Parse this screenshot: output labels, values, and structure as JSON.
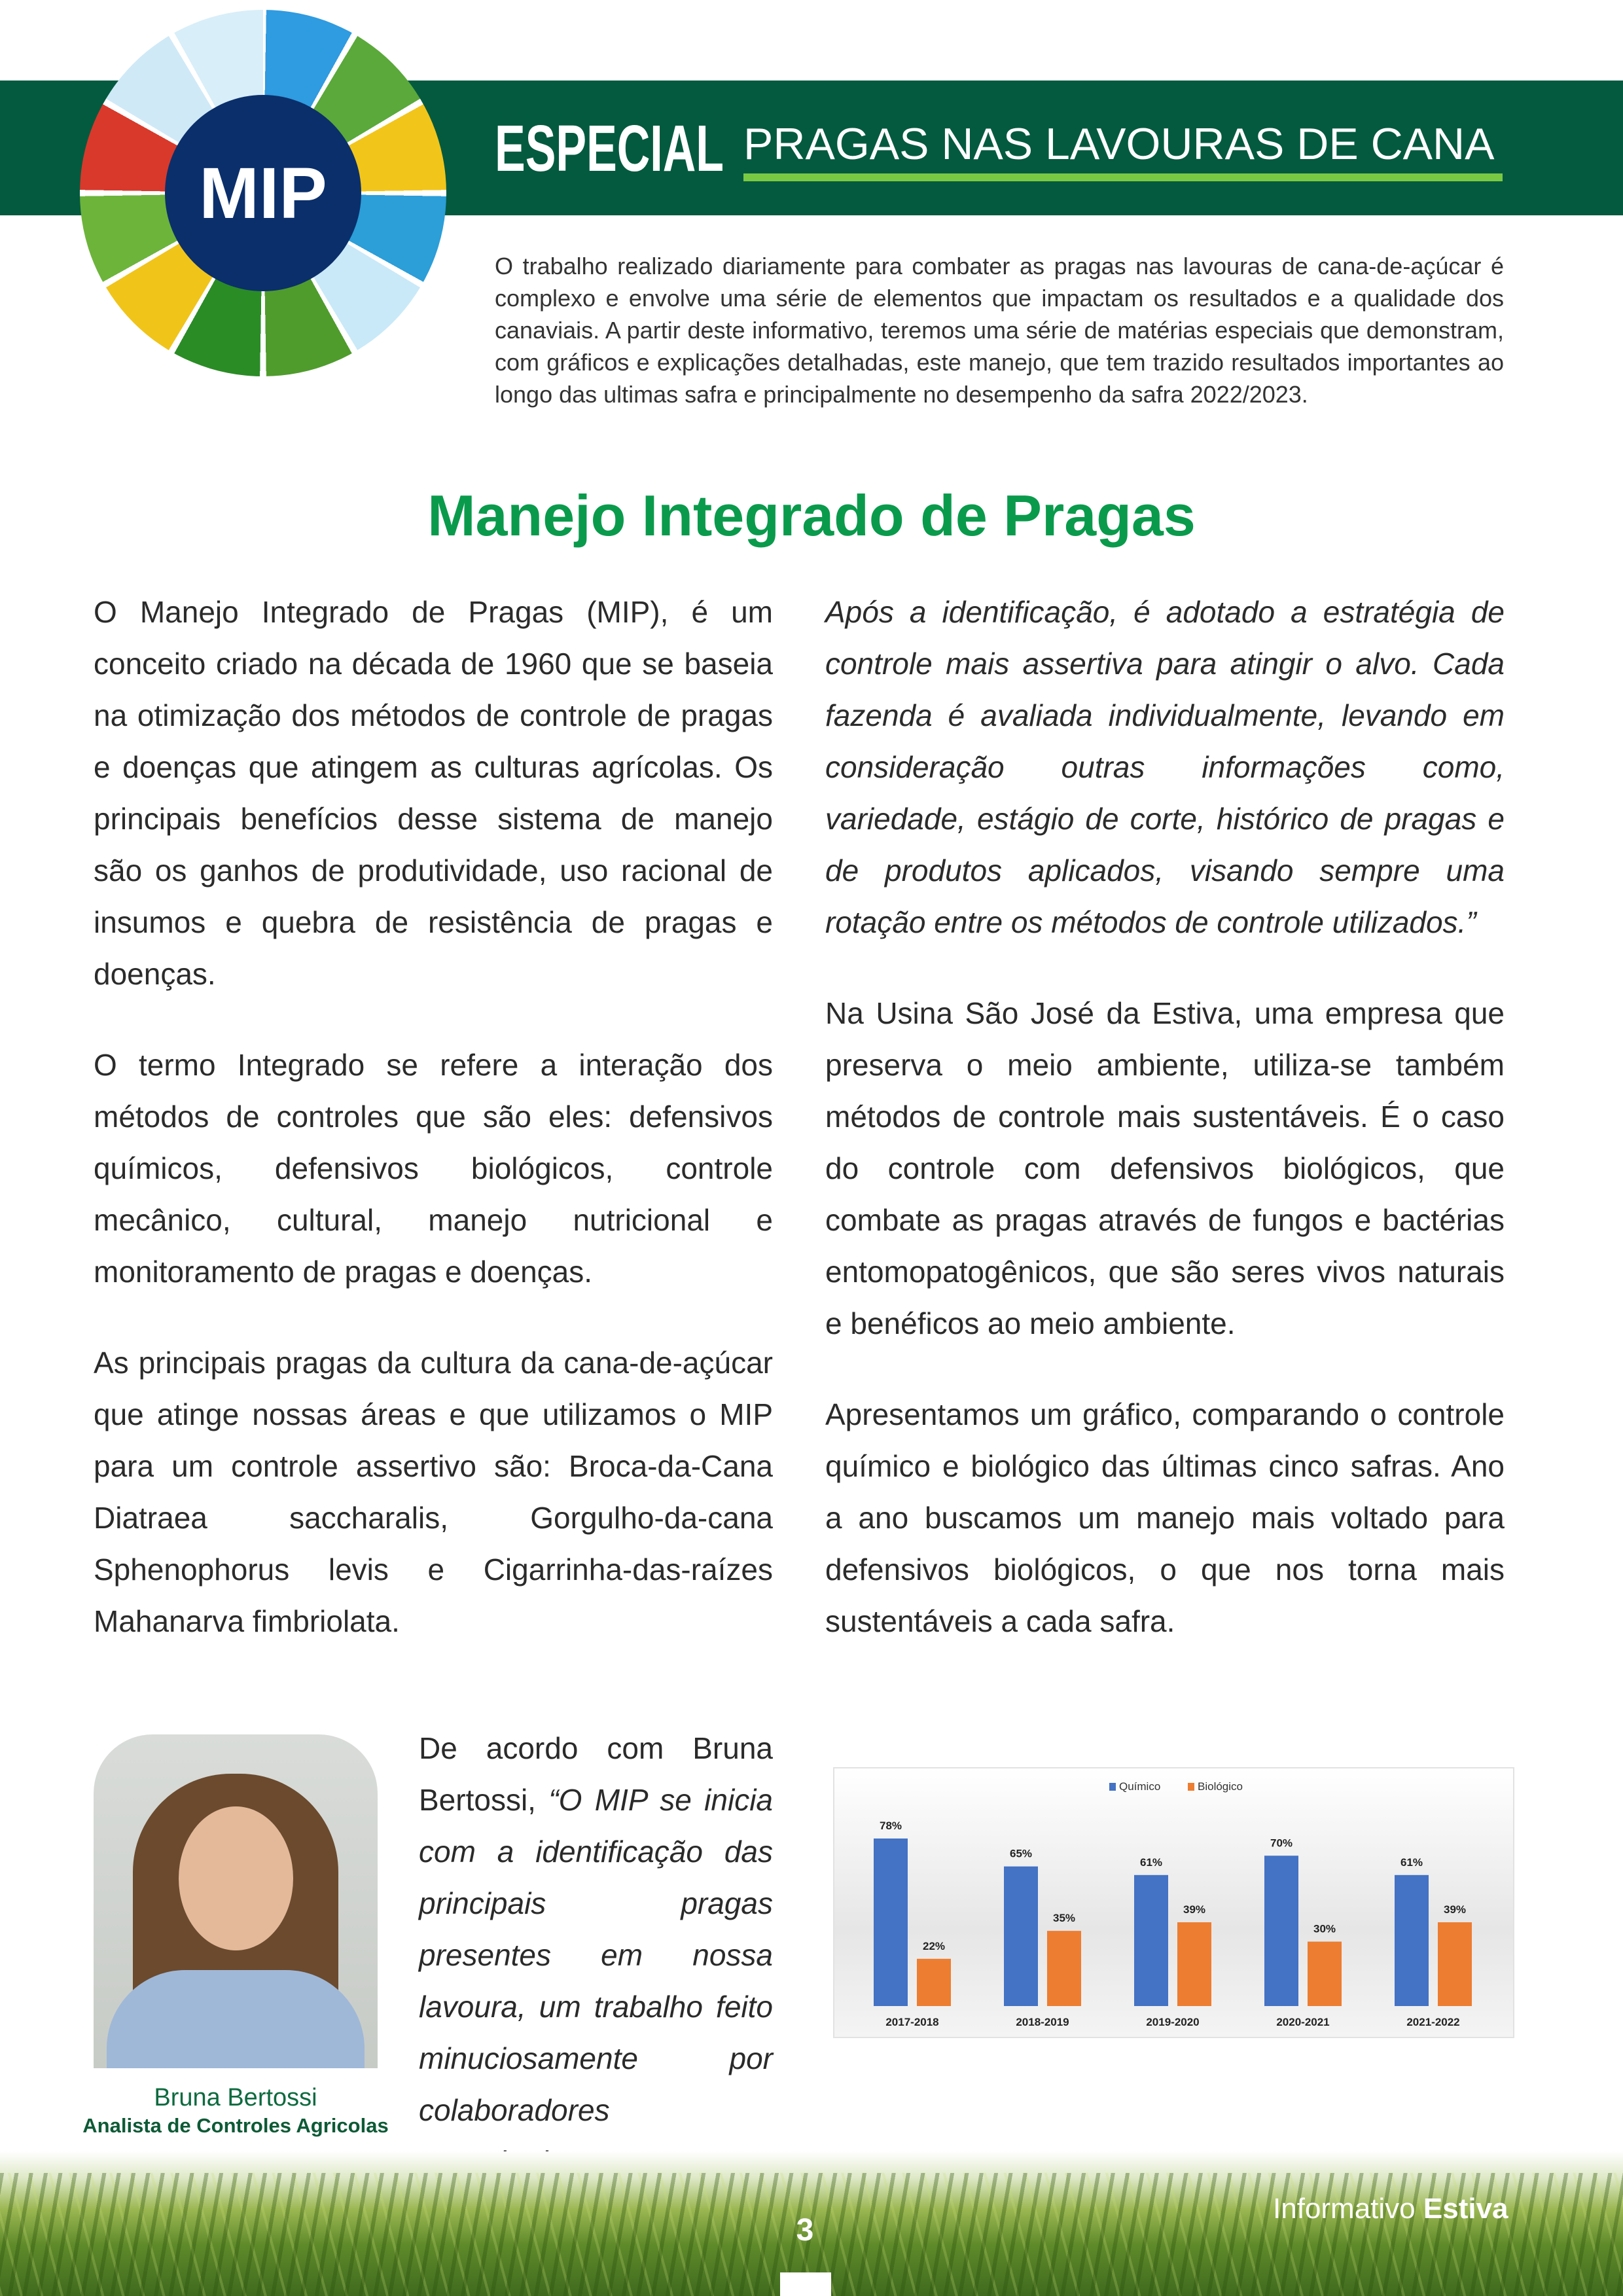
{
  "header": {
    "logo_text": "MIP",
    "especial": "ESPECIAL",
    "subtitle": "PRAGAS NAS LAVOURAS DE CANA",
    "intro": "O trabalho realizado diariamente para combater as pragas nas lavouras de cana-de-açúcar é complexo e envolve uma série de elementos que impactam os resultados e a qualidade dos canaviais. A partir deste informativo, teremos uma série de matérias especiais que demonstram, com gráficos e explicações detalhadas, este manejo, que tem trazido resultados importantes ao longo das ultimas safra e principalmente no desempenho da safra 2022/2023."
  },
  "article": {
    "title": "Manejo Integrado de Pragas",
    "left": [
      "O Manejo Integrado de Pragas (MIP), é um conceito criado na década de 1960 que se baseia na otimização dos métodos de controle de pragas e doenças que atingem as culturas agrícolas. Os principais benefícios desse sistema de manejo são os ganhos de produtividade, uso racional de insumos e quebra de resistência de pragas e doenças.",
      "O termo Integrado se refere a interação dos métodos de controles que são eles: defensivos químicos, defensivos biológicos, controle mecânico, cultural, manejo nutricional e monitoramento de pragas e doenças.",
      "As principais pragas da cultura da cana-de-açúcar que atinge nossas áreas e que utilizamos o MIP para um controle assertivo são: Broca-da-Cana Diatraea saccharalis, Gorgulho-da-cana Sphenophorus levis e Cigarrinha-das-raízes Mahanarva fimbriolata."
    ],
    "quote_intro": "De acordo com Bruna Bertossi, ",
    "quote_italic": "“O MIP se inicia com a identificação das principais pragas presentes em nossa lavoura, um trabalho feito minuciosamente por colaboradores capacitados.",
    "right": [
      "Após a identificação, é adotado a estratégia de controle mais assertiva para atingir o alvo. Cada fazenda é avaliada individualmente, levando em consideração outras informações como, variedade, estágio de corte, histórico de pragas e de produtos aplicados, visando sempre uma rotação entre os métodos de controle utilizados.”",
      "Na Usina São José da Estiva, uma empresa que preserva o meio ambiente, utiliza-se também métodos de controle mais sustentáveis. É o caso do controle com defensivos biológicos, que combate as pragas através de fungos e bactérias entomopatogênicos, que são seres vivos naturais e benéficos ao meio ambiente.",
      "Apresentamos um gráfico, comparando o controle químico e biológico das últimas cinco safras. Ano a ano buscamos um manejo mais voltado para defensivos biológicos, o que nos torna mais sustentáveis a cada safra."
    ],
    "photo_caption": {
      "name": "Bruna Bertossi",
      "role": "Analista de Controles Agricolas"
    }
  },
  "chart_data": {
    "type": "bar",
    "categories": [
      "2017-2018",
      "2018-2019",
      "2019-2020",
      "2020-2021",
      "2021-2022"
    ],
    "series": [
      {
        "name": "Químico",
        "values": [
          78,
          65,
          61,
          70,
          61
        ],
        "color": "#4472c4"
      },
      {
        "name": "Biológico",
        "values": [
          22,
          35,
          39,
          30,
          39
        ],
        "color": "#ed7d31"
      }
    ],
    "data_labels": [
      [
        "78%",
        "65%",
        "61%",
        "70%",
        "61%"
      ],
      [
        "22%",
        "35%",
        "39%",
        "30%",
        "39%"
      ]
    ],
    "legend_position": "top",
    "ylim": [
      0,
      100
    ],
    "grid": false
  },
  "footer": {
    "brand_light": "Informativo ",
    "brand_bold": "Estiva",
    "page_number": "3"
  }
}
